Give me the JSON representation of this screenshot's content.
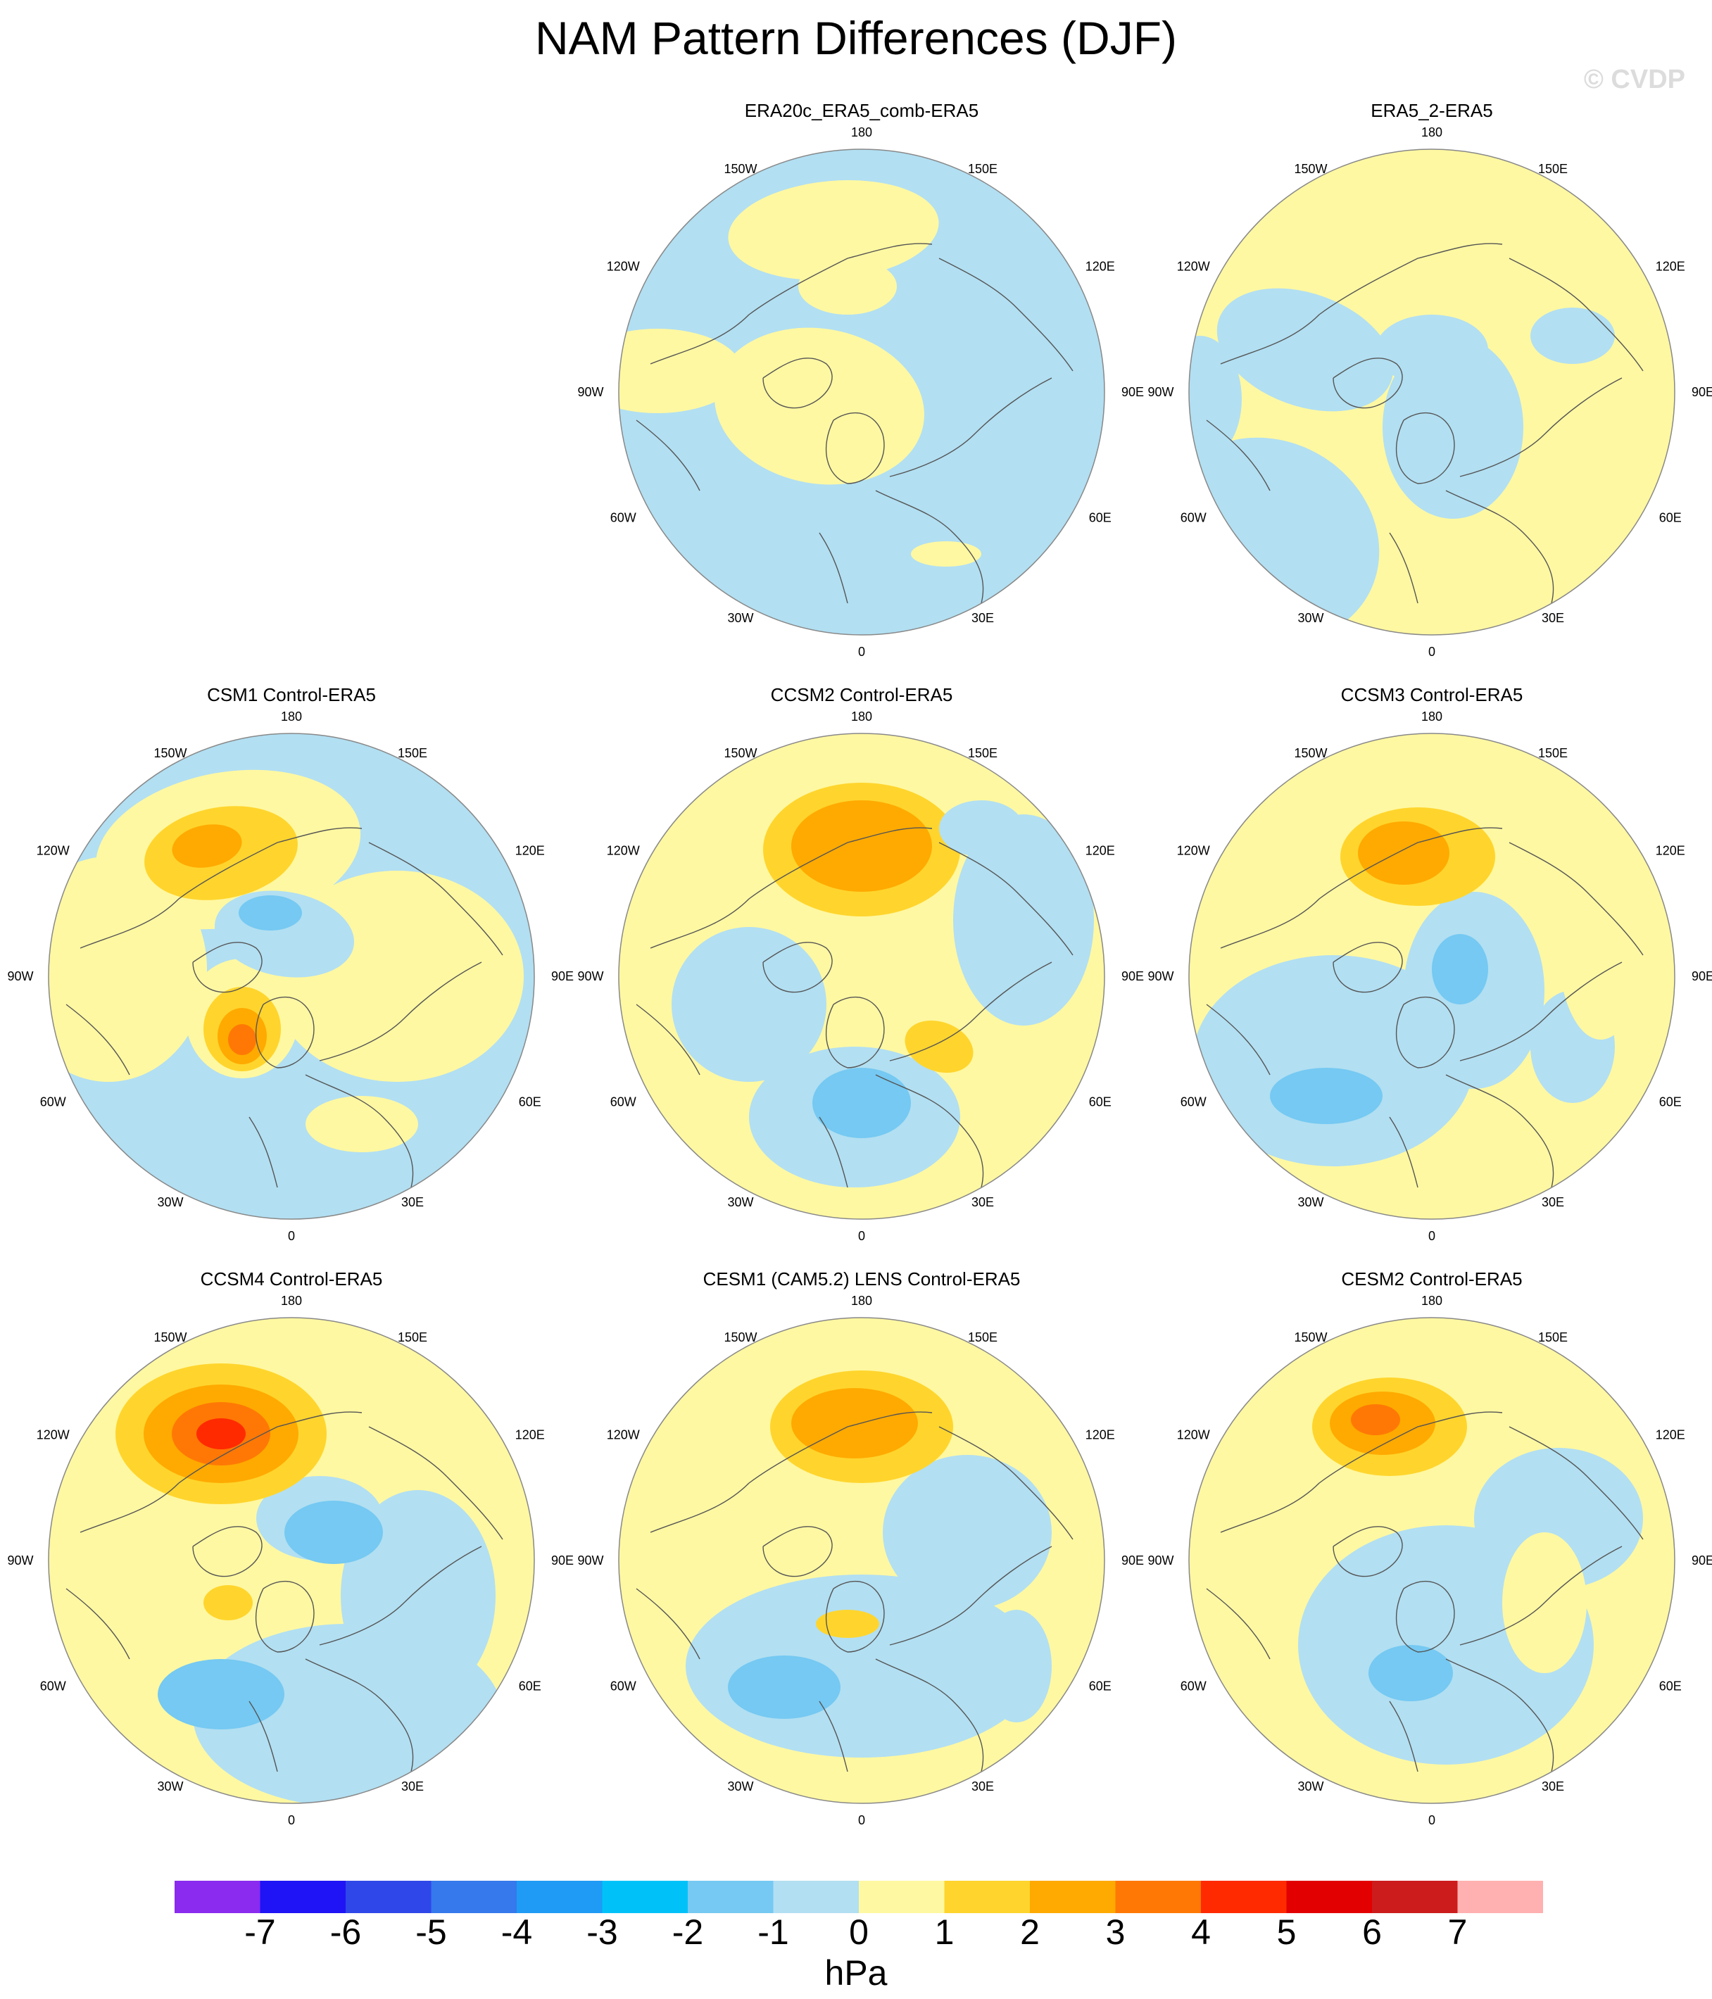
{
  "title": "NAM Pattern Differences (DJF)",
  "watermark": "© CVDP",
  "longitude_labels": {
    "top": "180",
    "bottom": "0",
    "upper_left": "150W",
    "upper_right": "150E",
    "mid_upper_left": "120W",
    "mid_upper_right": "120E",
    "left": "90W",
    "right": "90E",
    "mid_lower_left": "60W",
    "mid_lower_right": "60E",
    "lower_left": "30W",
    "lower_right": "30E"
  },
  "panels": [
    {
      "title": "ERA20c_ERA5_comb-ERA5"
    },
    {
      "title": "ERA5_2-ERA5"
    },
    {
      "title": "CSM1 Control-ERA5"
    },
    {
      "title": "CCSM2 Control-ERA5"
    },
    {
      "title": "CCSM3 Control-ERA5"
    },
    {
      "title": "CCSM4 Control-ERA5"
    },
    {
      "title": "CESM1 (CAM5.2) LENS Control-ERA5"
    },
    {
      "title": "CESM2 Control-ERA5"
    }
  ],
  "colorbar": {
    "unit": "hPa",
    "tick_labels": [
      "-7",
      "-6",
      "-5",
      "-4",
      "-3",
      "-2",
      "-1",
      "0",
      "1",
      "2",
      "3",
      "4",
      "5",
      "6",
      "7"
    ],
    "colors": [
      "#8a2bef",
      "#1f14f5",
      "#2f47e8",
      "#3579ec",
      "#1f9bf5",
      "#00c2f9",
      "#75c9f2",
      "#b2dff2",
      "#fff8a2",
      "#ffd52d",
      "#ffaa00",
      "#ff7805",
      "#ff2a00",
      "#e20000",
      "#cc1c1c",
      "#ffb0b0"
    ]
  },
  "field_colors": {
    "land_outline": "#555555",
    "neg1": "#b2dff2",
    "neg2": "#75c9f2",
    "neg3": "#1f9bf5",
    "pos1": "#fff8a2",
    "pos2": "#ffd52d",
    "pos3": "#ffaa00",
    "pos4": "#ff7805",
    "pos5": "#ff2a00"
  }
}
